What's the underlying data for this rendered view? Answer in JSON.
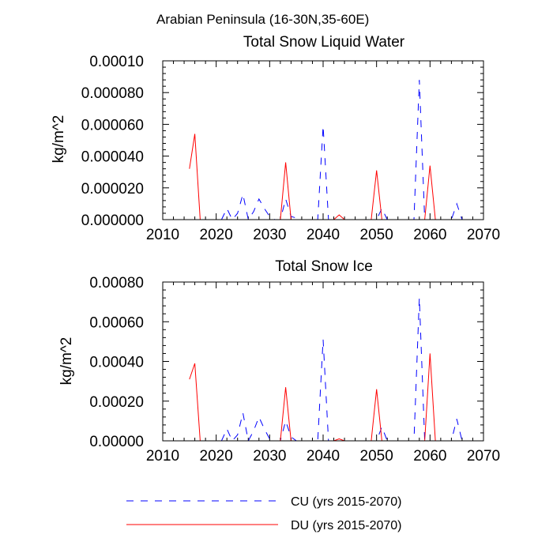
{
  "suptitle": "Arabian Peninsula (16-30N,35-60E)",
  "legend": [
    {
      "label": "CU (yrs 2015-2070)",
      "color": "#0000ff",
      "dash": true
    },
    {
      "label": "DU (yrs 2015-2070)",
      "color": "#ff0000",
      "dash": false
    }
  ],
  "chart_data": [
    {
      "type": "line",
      "title": "Total Snow Liquid Water",
      "xlabel": "",
      "ylabel": "kg/m^2",
      "xlim": [
        2010,
        2070
      ],
      "ylim": [
        0,
        0.0001
      ],
      "xticks": [
        2010,
        2020,
        2030,
        2040,
        2050,
        2060,
        2070
      ],
      "yticks": [
        0,
        2e-05,
        4e-05,
        6e-05,
        8e-05,
        0.0001
      ],
      "ytick_labels": [
        "0.000000",
        "0.000020",
        "0.000040",
        "0.000060",
        "0.000080",
        "0.00010"
      ],
      "series": [
        {
          "name": "CU (yrs 2015-2070)",
          "color": "#0000ff",
          "x": [
            2021,
            2022,
            2023,
            2024,
            2025,
            2026,
            2027,
            2028,
            2029,
            2030,
            2031,
            2032,
            2033,
            2034,
            2035,
            2036,
            2037,
            2038,
            2039,
            2040,
            2041,
            2042,
            2043,
            2044,
            2045,
            2046,
            2047,
            2048,
            2049,
            2050,
            2051,
            2052,
            2053,
            2054,
            2055,
            2056,
            2057,
            2058,
            2059,
            2060,
            2061,
            2062,
            2063,
            2064,
            2065,
            2066
          ],
          "y": [
            0,
            7e-06,
            0,
            4e-06,
            1.6e-05,
            0,
            5e-06,
            1.3e-05,
            7e-06,
            2e-06,
            0,
            0,
            1.3e-05,
            2e-06,
            1e-06,
            0,
            0,
            0,
            0,
            5.9e-05,
            0,
            0,
            0,
            0,
            0,
            0,
            0,
            0,
            0,
            0,
            7e-06,
            0,
            0,
            0,
            0,
            0,
            0,
            8.8e-05,
            0,
            0,
            0,
            0,
            0,
            0,
            1e-05,
            0
          ]
        },
        {
          "name": "DU (yrs 2015-2070)",
          "color": "#ff0000",
          "x": [
            2015,
            2016,
            2017,
            2018,
            2019,
            2020,
            2021,
            2022,
            2023,
            2024,
            2025,
            2026,
            2027,
            2028,
            2029,
            2030,
            2031,
            2032,
            2033,
            2034,
            2035,
            2036,
            2037,
            2038,
            2039,
            2040,
            2041,
            2042,
            2043,
            2044,
            2045,
            2046,
            2047,
            2048,
            2049,
            2050,
            2051,
            2052,
            2053,
            2054,
            2055,
            2056,
            2057,
            2058,
            2059,
            2060,
            2061
          ],
          "y": [
            3.2e-05,
            5.4e-05,
            0,
            0,
            0,
            0,
            0,
            0,
            0,
            0,
            0,
            0,
            0,
            0,
            0,
            0,
            0,
            0,
            3.6e-05,
            0,
            0,
            0,
            0,
            0,
            0,
            0,
            0,
            0,
            3e-06,
            0,
            0,
            0,
            0,
            0,
            0,
            3.1e-05,
            0,
            0,
            0,
            0,
            0,
            0,
            0,
            0,
            0,
            3.4e-05,
            0
          ]
        }
      ]
    },
    {
      "type": "line",
      "title": "Total Snow Ice",
      "xlabel": "",
      "ylabel": "kg/m^2",
      "xlim": [
        2010,
        2070
      ],
      "ylim": [
        0,
        0.0008
      ],
      "xticks": [
        2010,
        2020,
        2030,
        2040,
        2050,
        2060,
        2070
      ],
      "yticks": [
        0,
        0.0002,
        0.0004,
        0.0006,
        0.0008
      ],
      "ytick_labels": [
        "0.00000",
        "0.00020",
        "0.00040",
        "0.00060",
        "0.00080"
      ],
      "series": [
        {
          "name": "CU (yrs 2015-2070)",
          "color": "#0000ff",
          "x": [
            2021,
            2022,
            2023,
            2024,
            2025,
            2026,
            2027,
            2028,
            2029,
            2030,
            2031,
            2032,
            2033,
            2034,
            2035,
            2036,
            2037,
            2038,
            2039,
            2040,
            2041,
            2042,
            2043,
            2044,
            2045,
            2046,
            2047,
            2048,
            2049,
            2050,
            2051,
            2052,
            2053,
            2054,
            2055,
            2056,
            2057,
            2058,
            2059,
            2060,
            2061,
            2062,
            2063,
            2064,
            2065,
            2066
          ],
          "y": [
            0,
            6e-05,
            0,
            3e-05,
            0.00014,
            0,
            5e-05,
            0.00012,
            6e-05,
            1e-05,
            0,
            0,
            0.0001,
            2e-05,
            0,
            0,
            0,
            0,
            0,
            0.00051,
            0,
            0,
            0,
            0,
            0,
            0,
            0,
            0,
            0,
            0,
            7e-05,
            0,
            0,
            0,
            0,
            0,
            0,
            0.00072,
            0,
            0,
            0,
            0,
            0,
            0,
            0.00011,
            0
          ]
        },
        {
          "name": "DU (yrs 2015-2070)",
          "color": "#ff0000",
          "x": [
            2015,
            2016,
            2017,
            2018,
            2019,
            2020,
            2021,
            2022,
            2023,
            2024,
            2025,
            2026,
            2027,
            2028,
            2029,
            2030,
            2031,
            2032,
            2033,
            2034,
            2035,
            2036,
            2037,
            2038,
            2039,
            2040,
            2041,
            2042,
            2043,
            2044,
            2045,
            2046,
            2047,
            2048,
            2049,
            2050,
            2051,
            2052,
            2053,
            2054,
            2055,
            2056,
            2057,
            2058,
            2059,
            2060,
            2061
          ],
          "y": [
            0.00031,
            0.00039,
            0,
            0,
            0,
            0,
            0,
            0,
            0,
            0,
            0,
            0,
            0,
            0,
            0,
            0,
            0,
            0,
            0.00027,
            0,
            0,
            0,
            0,
            0,
            0,
            0,
            0,
            0,
            1e-05,
            0,
            0,
            0,
            0,
            0,
            0,
            0.00026,
            0,
            0,
            0,
            0,
            0,
            0,
            0,
            0,
            0,
            0.00044,
            0
          ]
        }
      ]
    }
  ]
}
